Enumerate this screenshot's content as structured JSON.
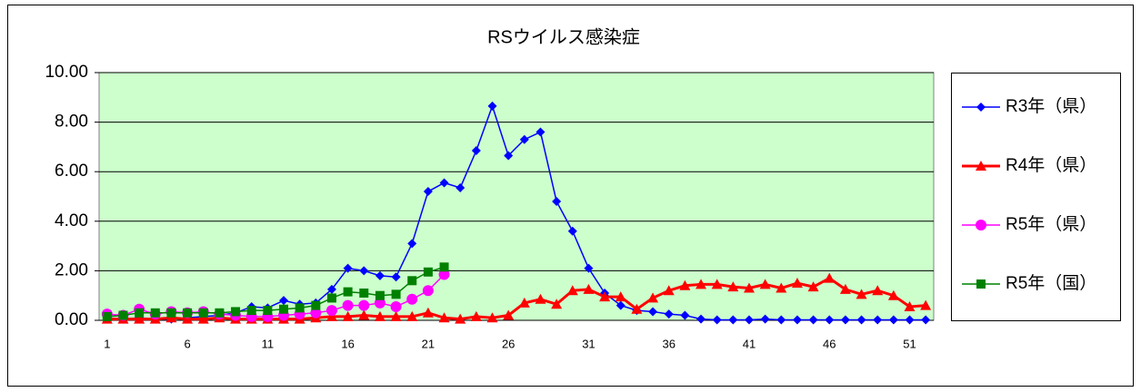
{
  "chart_data": {
    "type": "line",
    "title": "RSウイルス感染症",
    "categories": [
      "1",
      null,
      null,
      null,
      null,
      "6",
      null,
      null,
      null,
      null,
      "11",
      null,
      null,
      null,
      null,
      "16",
      null,
      null,
      null,
      null,
      "21",
      null,
      null,
      null,
      null,
      "26",
      null,
      null,
      null,
      null,
      "31",
      null,
      null,
      null,
      null,
      "36",
      null,
      null,
      null,
      null,
      "41",
      null,
      null,
      null,
      null,
      "46",
      null,
      null,
      null,
      null,
      "51",
      null
    ],
    "ylim": [
      0,
      10
    ],
    "yticks": [
      {
        "value": 0,
        "label": "0.00"
      },
      {
        "value": 2,
        "label": "2.00"
      },
      {
        "value": 4,
        "label": "4.00"
      },
      {
        "value": 6,
        "label": "6.00"
      },
      {
        "value": 8,
        "label": "8.00"
      },
      {
        "value": 10,
        "label": "10.00"
      }
    ],
    "grid": true,
    "legend": "right",
    "series": [
      {
        "name": "R3年（県）",
        "color": "#0000ff",
        "marker": "diamond",
        "values": [
          0.1,
          0.05,
          0.1,
          0.05,
          0.05,
          0.1,
          0.15,
          0.2,
          0.3,
          0.55,
          0.5,
          0.8,
          0.65,
          0.7,
          1.25,
          2.1,
          2.0,
          1.8,
          1.75,
          3.1,
          5.2,
          5.55,
          5.35,
          6.85,
          8.65,
          6.65,
          7.3,
          7.6,
          4.8,
          3.6,
          2.1,
          1.1,
          0.6,
          0.4,
          0.35,
          0.25,
          0.2,
          0.05,
          0.02,
          0.02,
          0.02,
          0.05,
          0.02,
          0.02,
          0.02,
          0.02,
          0.02,
          0.02,
          0.02,
          0.02,
          0.02,
          0.02
        ]
      },
      {
        "name": "R4年（県）",
        "color": "#ff0000",
        "marker": "triangle",
        "values": [
          0.05,
          0.05,
          0.05,
          0.05,
          0.1,
          0.05,
          0.05,
          0.1,
          0.05,
          0.05,
          0.05,
          0.05,
          0.05,
          0.1,
          0.15,
          0.15,
          0.2,
          0.15,
          0.15,
          0.15,
          0.3,
          0.1,
          0.05,
          0.15,
          0.1,
          0.2,
          0.7,
          0.85,
          0.65,
          1.2,
          1.25,
          0.95,
          0.95,
          0.45,
          0.9,
          1.2,
          1.4,
          1.45,
          1.45,
          1.35,
          1.3,
          1.45,
          1.3,
          1.5,
          1.35,
          1.7,
          1.25,
          1.05,
          1.2,
          1.0,
          0.55,
          0.6
        ]
      },
      {
        "name": "R5年（県）",
        "color": "#ff00ff",
        "marker": "circle",
        "values": [
          0.25,
          0.2,
          0.45,
          0.25,
          0.35,
          0.3,
          0.35,
          0.25,
          0.2,
          0.15,
          0.15,
          0.2,
          0.25,
          0.3,
          0.4,
          0.6,
          0.6,
          0.7,
          0.55,
          0.85,
          1.2,
          1.85,
          null,
          null,
          null,
          null,
          null,
          null,
          null,
          null,
          null,
          null,
          null,
          null,
          null,
          null,
          null,
          null,
          null,
          null,
          null,
          null,
          null,
          null,
          null,
          null,
          null,
          null,
          null,
          null,
          null,
          null
        ]
      },
      {
        "name": "R5年（国）",
        "color": "#008000",
        "marker": "square",
        "values": [
          0.15,
          0.2,
          0.3,
          0.3,
          0.3,
          0.3,
          0.3,
          0.3,
          0.35,
          0.4,
          0.4,
          0.45,
          0.5,
          0.6,
          0.9,
          1.15,
          1.1,
          1.0,
          1.05,
          1.6,
          1.95,
          2.15,
          null,
          null,
          null,
          null,
          null,
          null,
          null,
          null,
          null,
          null,
          null,
          null,
          null,
          null,
          null,
          null,
          null,
          null,
          null,
          null,
          null,
          null,
          null,
          null,
          null,
          null,
          null,
          null,
          null,
          null
        ]
      }
    ]
  }
}
